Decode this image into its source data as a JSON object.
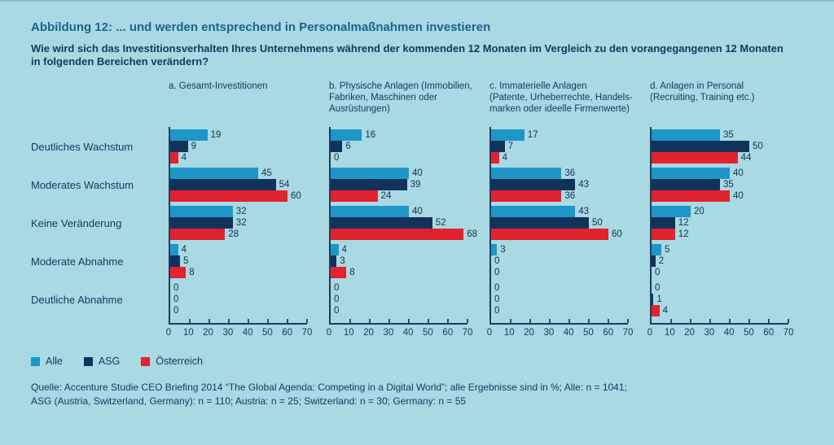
{
  "header": {
    "title": "Abbildung 12: ... und werden entsprechend in Personalmaßnahmen investieren",
    "question_line1": "Wie wird sich das Investitionsverhalten Ihres Unternehmens während der kommenden 12 Monaten im Vergleich zu den vorangegangenen 12 Monaten",
    "question_line2": "in folgenden Bereichen verändern?"
  },
  "legend": [
    {
      "label": "Alle",
      "color": "#1E96C8"
    },
    {
      "label": "ASG",
      "color": "#12325B"
    },
    {
      "label": "Österreich",
      "color": "#E0232E"
    }
  ],
  "footer": {
    "source_line1": "Quelle: Accenture Studie CEO Briefing 2014 “The Global Agenda: Competing in a Digital World”; alle Ergebnisse sind in %;  Alle: n = 1041;",
    "source_line2": "ASG (Austria, Switzerland, Germany): n = 110; Austria: n = 25; Switzerland: n = 30; Germany: n = 55"
  },
  "chart_data": {
    "type": "bar",
    "orientation": "horizontal",
    "categories": [
      "Deutliches Wachstum",
      "Moderates Wachstum",
      "Keine Veränderung",
      "Moderate Abnahme",
      "Deutliche Abnahme"
    ],
    "series_names": [
      "Alle",
      "ASG",
      "Österreich"
    ],
    "series_colors": [
      "#1E96C8",
      "#12325B",
      "#E0232E"
    ],
    "unit": "%",
    "xlim": [
      0,
      70
    ],
    "xticks": [
      0,
      10,
      20,
      30,
      40,
      50,
      60,
      70
    ],
    "grid": false,
    "legend_position": "bottom-left",
    "panels": [
      {
        "title": "a. Gesamt-Investitionen",
        "title_lines": [
          "a. Gesamt-Investitionen"
        ],
        "series": [
          {
            "name": "Alle",
            "values": [
              19,
              45,
              32,
              4,
              0
            ]
          },
          {
            "name": "ASG",
            "values": [
              9,
              54,
              32,
              5,
              0
            ]
          },
          {
            "name": "Österreich",
            "values": [
              4,
              60,
              28,
              8,
              0
            ]
          }
        ]
      },
      {
        "title": "b. Physische Anlagen (Immobilien, Fabriken, Maschinen oder Ausrüstungen)",
        "title_lines": [
          "b. Physische Anlagen (Immobilien,",
          "Fabriken, Maschinen oder",
          "Ausrüstungen)"
        ],
        "series": [
          {
            "name": "Alle",
            "values": [
              16,
              40,
              40,
              4,
              0
            ]
          },
          {
            "name": "ASG",
            "values": [
              6,
              39,
              52,
              3,
              0
            ]
          },
          {
            "name": "Österreich",
            "values": [
              0,
              24,
              68,
              8,
              0
            ]
          }
        ]
      },
      {
        "title": "c. Immaterielle Anlagen (Patente, Urheberrechte, Handels­marken oder ideelle Firmenwerte)",
        "title_lines": [
          "c. Immaterielle Anlagen",
          "(Patente, Urheberrechte, Handels-",
          "marken oder ideelle Firmenwerte)"
        ],
        "series": [
          {
            "name": "Alle",
            "values": [
              17,
              36,
              43,
              3,
              0
            ]
          },
          {
            "name": "ASG",
            "values": [
              7,
              43,
              50,
              0,
              0
            ]
          },
          {
            "name": "Österreich",
            "values": [
              4,
              36,
              60,
              0,
              0
            ]
          }
        ]
      },
      {
        "title": "d. Anlagen in Personal (Recruiting, Training etc.)",
        "title_lines": [
          "d. Anlagen in Personal",
          "(Recruiting, Training etc.)"
        ],
        "series": [
          {
            "name": "Alle",
            "values": [
              35,
              40,
              20,
              5,
              0
            ]
          },
          {
            "name": "ASG",
            "values": [
              50,
              35,
              12,
              2,
              1
            ]
          },
          {
            "name": "Österreich",
            "values": [
              44,
              40,
              12,
              0,
              4
            ]
          }
        ]
      }
    ]
  }
}
